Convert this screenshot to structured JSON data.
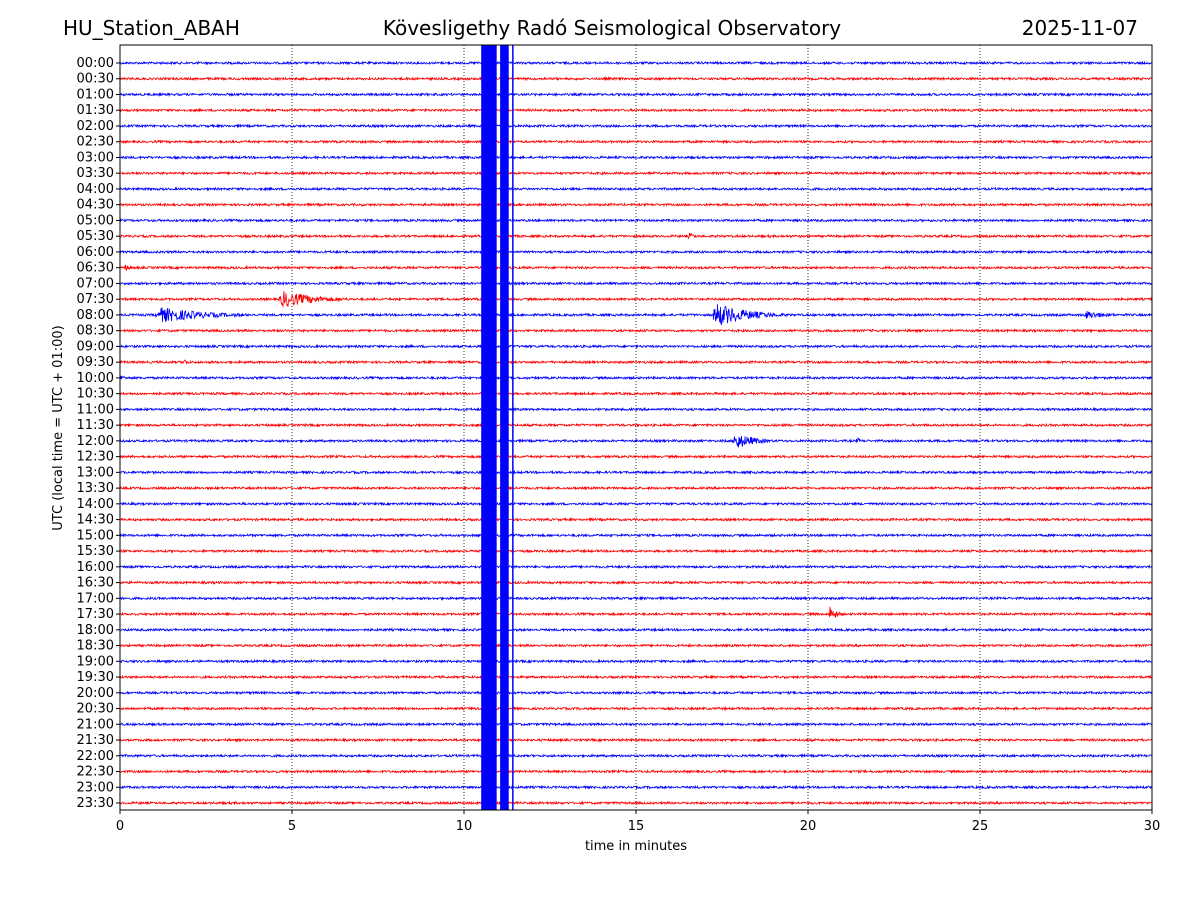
{
  "chart_data": {
    "type": "line",
    "title_left": "HU_Station_ABAH",
    "title": "Kövesligethy Radó Seismological Observatory",
    "title_right": "2025-11-07",
    "xlabel": "time in minutes",
    "ylabel": "UTC (local time = UTC + 01:00)",
    "xlim": [
      0,
      30
    ],
    "xticks": [
      "0",
      "5",
      "10",
      "15",
      "20",
      "25",
      "30"
    ],
    "xtick_values": [
      0,
      5,
      10,
      15,
      20,
      25,
      30
    ],
    "grid": "vertical dotted",
    "row_labels": [
      "00:00",
      "00:30",
      "01:00",
      "01:30",
      "02:00",
      "02:30",
      "03:00",
      "03:30",
      "04:00",
      "04:30",
      "05:00",
      "05:30",
      "06:00",
      "06:30",
      "07:00",
      "07:30",
      "08:00",
      "08:30",
      "09:00",
      "09:30",
      "10:00",
      "10:30",
      "11:00",
      "11:30",
      "12:00",
      "12:30",
      "13:00",
      "13:30",
      "14:00",
      "14:30",
      "15:00",
      "15:30",
      "16:00",
      "16:30",
      "17:00",
      "17:30",
      "18:00",
      "18:30",
      "19:00",
      "19:30",
      "20:00",
      "20:30",
      "21:00",
      "21:30",
      "22:00",
      "22:30",
      "23:00",
      "23:30"
    ],
    "row_colors": [
      "#0000ff",
      "#ff0000"
    ],
    "events": [
      {
        "row": 11,
        "start": 16.5,
        "end": 17.3,
        "amp": 4
      },
      {
        "row": 13,
        "start": 0.1,
        "end": 0.8,
        "amp": 4
      },
      {
        "row": 15,
        "start": 4.6,
        "end": 7.5,
        "amp": 10
      },
      {
        "row": 16,
        "start": 1.0,
        "end": 5.0,
        "amp": 9
      },
      {
        "row": 16,
        "start": 17.2,
        "end": 20.0,
        "amp": 14
      },
      {
        "row": 16,
        "start": 28.0,
        "end": 30.0,
        "amp": 5
      },
      {
        "row": 19,
        "start": 1.8,
        "end": 2.4,
        "amp": 4
      },
      {
        "row": 20,
        "start": 0.0,
        "end": 0.5,
        "amp": 4
      },
      {
        "row": 24,
        "start": 17.8,
        "end": 19.5,
        "amp": 10
      },
      {
        "row": 24,
        "start": 21.4,
        "end": 21.8,
        "amp": 4
      },
      {
        "row": 35,
        "start": 20.6,
        "end": 21.2,
        "amp": 10
      }
    ],
    "saturated_bands": [
      {
        "start": 10.5,
        "end": 10.95
      },
      {
        "start": 11.05,
        "end": 11.3
      }
    ],
    "saturated_lines": [
      11.42
    ]
  }
}
